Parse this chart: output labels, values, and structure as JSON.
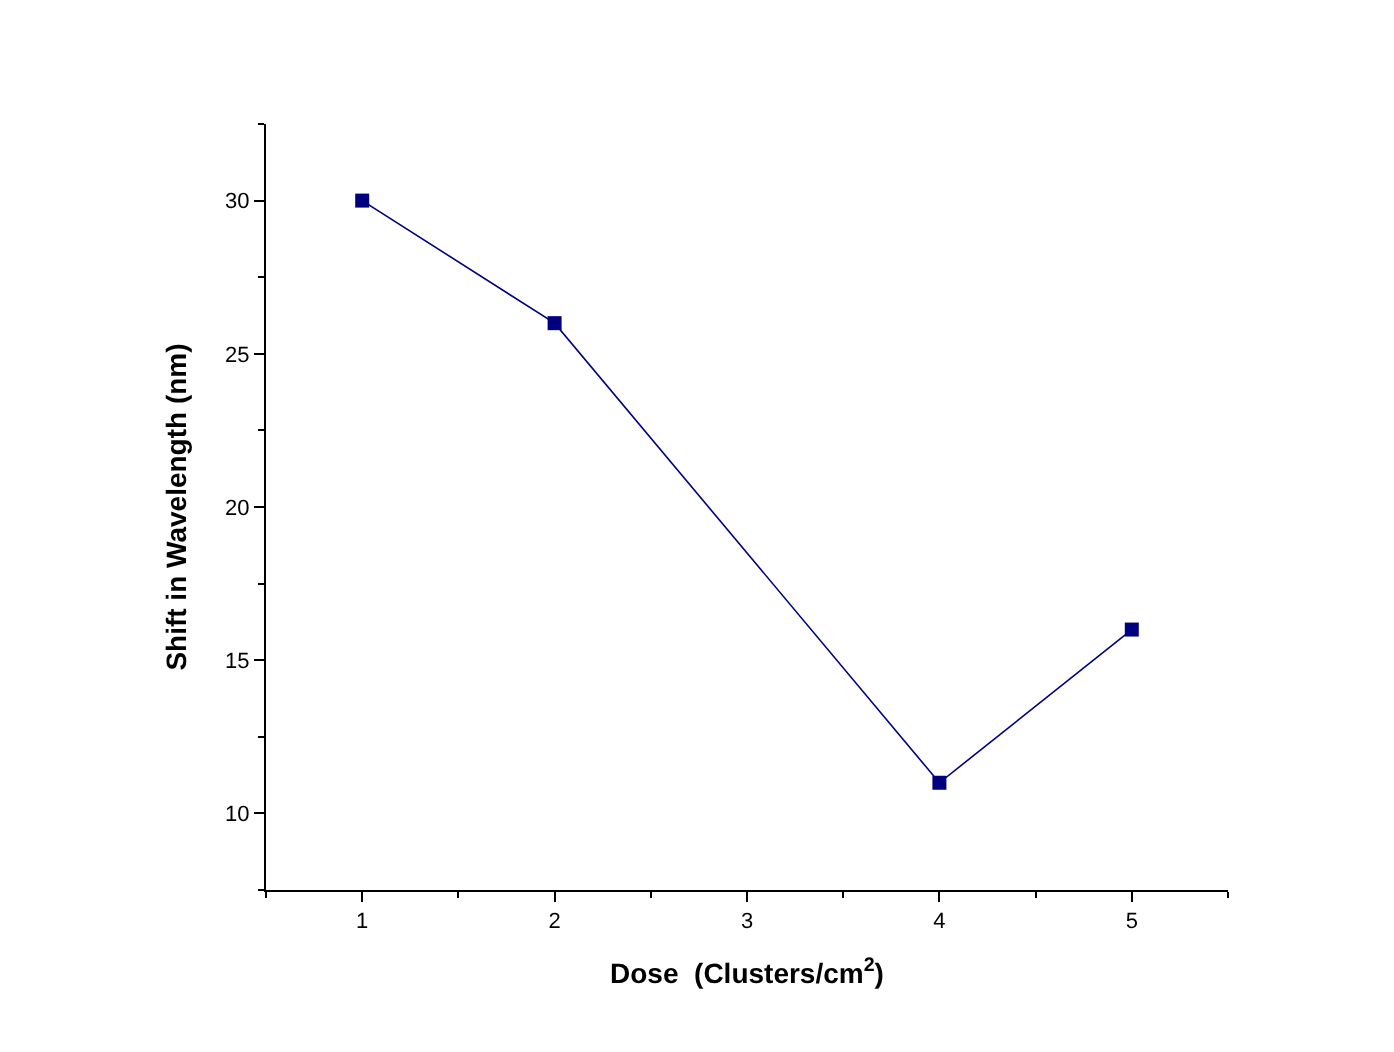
{
  "chart_data": {
    "type": "line",
    "xlabel": "Dose  (Clusters/cm$^{2}$)",
    "ylabel": "Shift in Wavelength (nm)",
    "x": [
      1,
      2,
      4,
      5
    ],
    "series": [
      {
        "color": "#00007f",
        "values": [
          30,
          26,
          11,
          16
        ]
      }
    ],
    "xlim": [
      0.5,
      5.5
    ],
    "xticks": [
      1,
      2,
      3,
      4,
      5
    ],
    "ylim": [
      7.5,
      32.5
    ],
    "yticks": [
      10,
      15,
      20,
      25,
      30
    ],
    "marker": "square",
    "line_style": "solid",
    "legend": false
  }
}
